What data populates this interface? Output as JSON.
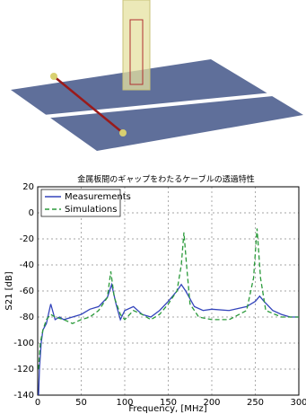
{
  "chart_data": {
    "type": "line",
    "title": "金属板間のギャップをわたるケーブルの透過特性",
    "x_label": "Frequency, [MHz]",
    "y_label": "S21 [dB]",
    "xlim": [
      0,
      300
    ],
    "ylim": [
      -140,
      20
    ],
    "xticks": [
      0,
      50,
      100,
      150,
      200,
      250,
      300
    ],
    "yticks": [
      -140,
      -120,
      -100,
      -80,
      -60,
      -40,
      -20,
      0,
      20
    ],
    "grid": true,
    "legend": "upper-left",
    "series": [
      {
        "name": "Measurements",
        "color": "#3344bb",
        "style": "solid",
        "x": [
          1,
          2,
          4,
          6,
          10,
          15,
          20,
          25,
          30,
          40,
          50,
          60,
          70,
          80,
          85,
          90,
          95,
          100,
          110,
          120,
          130,
          140,
          150,
          160,
          165,
          170,
          180,
          190,
          200,
          220,
          240,
          250,
          255,
          260,
          270,
          280,
          290,
          300
        ],
        "values": [
          -140,
          -120,
          -100,
          -90,
          -85,
          -70,
          -82,
          -80,
          -82,
          -80,
          -78,
          -74,
          -72,
          -65,
          -55,
          -70,
          -82,
          -75,
          -72,
          -78,
          -80,
          -75,
          -68,
          -60,
          -55,
          -60,
          -72,
          -75,
          -74,
          -75,
          -72,
          -68,
          -64,
          -68,
          -75,
          -78,
          -80,
          -80
        ]
      },
      {
        "name": "Simulations",
        "color": "#2a9a3a",
        "style": "dashed",
        "x": [
          1,
          3,
          6,
          10,
          15,
          20,
          30,
          40,
          50,
          60,
          70,
          80,
          84,
          88,
          95,
          100,
          110,
          120,
          130,
          140,
          150,
          160,
          165,
          168,
          171,
          175,
          185,
          200,
          220,
          240,
          248,
          252,
          256,
          262,
          280,
          300
        ],
        "values": [
          -120,
          -100,
          -90,
          -82,
          -78,
          -80,
          -82,
          -85,
          -82,
          -80,
          -75,
          -65,
          -45,
          -65,
          -78,
          -82,
          -75,
          -78,
          -82,
          -78,
          -70,
          -60,
          -40,
          -15,
          -40,
          -70,
          -80,
          -82,
          -82,
          -75,
          -50,
          -12,
          -50,
          -75,
          -80,
          -80
        ]
      }
    ]
  }
}
